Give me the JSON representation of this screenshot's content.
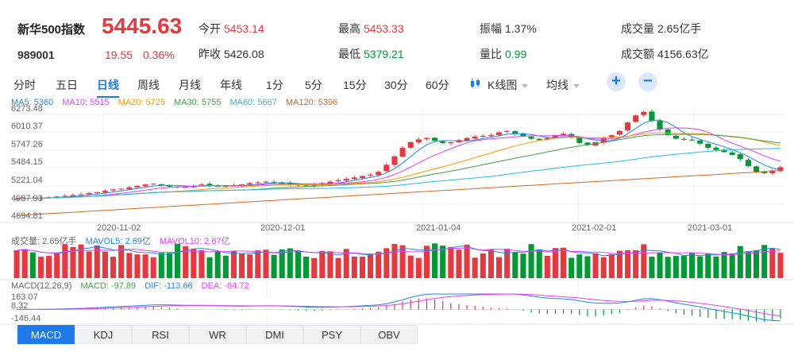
{
  "quote": {
    "name": "新华500指数",
    "code": "989001",
    "price": "5445.63",
    "change": "19.55",
    "change_pct": "0.36%",
    "open_label": "今开",
    "open": "5453.14",
    "prev_close_label": "昨收",
    "prev_close": "5426.08",
    "high_label": "最高",
    "high": "5453.33",
    "low_label": "最低",
    "low": "5379.21",
    "amplitude_label": "振幅",
    "amplitude": "1.37%",
    "volume_ratio_label": "量比",
    "volume_ratio": "0.99",
    "volume_label": "成交量",
    "volume": "2.65亿手",
    "turnover_label": "成交额",
    "turnover": "4156.63亿",
    "up_color": "#e8383d",
    "down_color": "#009933"
  },
  "period_tabs": [
    "分时",
    "五日",
    "日线",
    "周线",
    "月线",
    "年线",
    "1分",
    "5分",
    "15分",
    "30分",
    "60分"
  ],
  "active_period": "日线",
  "chart_type_label": "K线图",
  "ma_label": "均线",
  "zoom_in_icon": "plus-icon",
  "zoom_out_icon": "minus-icon",
  "ma_legend": {
    "ma5": "MA5: 5360",
    "ma10": "MA10: 5515",
    "ma20": "MA20: 5725",
    "ma30": "MA30: 5755",
    "ma60": "MA60: 5667",
    "ma120": "MA120: 5396",
    "colors": {
      "ma5": "#1e88e5",
      "ma10": "#e040fb",
      "ma20": "#ff9800",
      "ma30": "#43a047",
      "ma60": "#29b6f6",
      "ma120": "#d2691e"
    }
  },
  "price_axis": [
    "6273.48",
    "6010.37",
    "5747.26",
    "5484.15",
    "5221.04",
    "4957.93",
    "4694.81"
  ],
  "date_axis": [
    "2020-11-02",
    "2020-12-01",
    "2021-01-04",
    "2021-02-01",
    "2021-03-01"
  ],
  "vol_legend": {
    "vol": "成交量: 2.65亿手",
    "mavol5": "MAVOL5: 2.69亿",
    "mavol10": "MAVOL10: 2.67亿"
  },
  "macd_legend": {
    "title": "MACD(12,26,9)",
    "macd": "MACD: -97.89",
    "dif": "DIF: -113.66",
    "dea": "DEA: -64.72"
  },
  "macd_axis": [
    "163.07",
    "8.32",
    "-146.44"
  ],
  "indicator_tabs": [
    "MACD",
    "KDJ",
    "RSI",
    "WR",
    "DMI",
    "PSY",
    "OBV"
  ],
  "active_indicator": "MACD",
  "chart_data": {
    "type": "candlestick",
    "ylim": [
      4694.81,
      6273.48
    ],
    "close_approx": [
      5000,
      5010,
      5005,
      5012,
      5020,
      5030,
      5040,
      5050,
      5060,
      5080,
      5090,
      5110,
      5130,
      5140,
      5160,
      5180,
      5200,
      5210,
      5190,
      5170,
      5160,
      5170,
      5180,
      5200,
      5190,
      5180,
      5170,
      5185,
      5200,
      5220,
      5230,
      5240,
      5230,
      5210,
      5200,
      5190,
      5180,
      5200,
      5220,
      5240,
      5260,
      5280,
      5300,
      5320,
      5340,
      5380,
      5480,
      5600,
      5720,
      5800,
      5840,
      5860,
      5820,
      5790,
      5800,
      5830,
      5860,
      5880,
      5890,
      5900,
      5940,
      5960,
      5920,
      5880,
      5850,
      5830,
      5860,
      5900,
      5920,
      5880,
      5790,
      5760,
      5800,
      5860,
      5900,
      5960,
      6080,
      6180,
      6230,
      6100,
      5980,
      5900,
      5850,
      5840,
      5830,
      5780,
      5720,
      5690,
      5660,
      5620,
      5560,
      5460,
      5380,
      5360,
      5400,
      5445.63
    ],
    "volume_series": [
      "成交量",
      "MAVOL5",
      "MAVOL10"
    ],
    "macd_series": [
      "MACD",
      "DIF",
      "DEA"
    ]
  }
}
